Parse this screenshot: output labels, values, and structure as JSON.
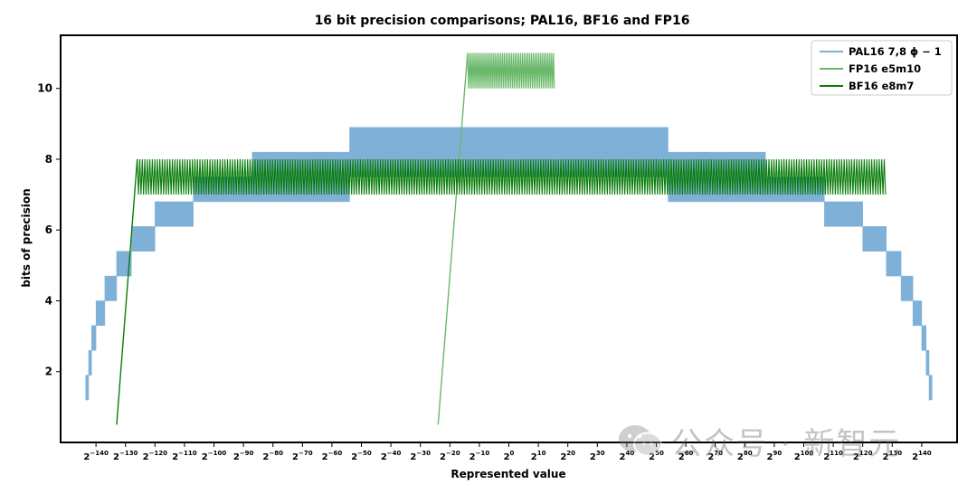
{
  "chart_data": {
    "type": "line",
    "title": "16 bit precision comparisons; PAL16, BF16 and FP16",
    "xlabel": "Represented value",
    "ylabel": "bits of precision",
    "x_scale": "log2",
    "xlim": [
      -152,
      152
    ],
    "ylim": [
      0,
      11.5
    ],
    "yticks": [
      2,
      4,
      6,
      8,
      10
    ],
    "xticks": [
      {
        "base": "2",
        "exp": "−140",
        "value": -140
      },
      {
        "base": "2",
        "exp": "−130",
        "value": -130
      },
      {
        "base": "2",
        "exp": "−120",
        "value": -120
      },
      {
        "base": "2",
        "exp": "−110",
        "value": -110
      },
      {
        "base": "2",
        "exp": "−100",
        "value": -100
      },
      {
        "base": "2",
        "exp": "−90",
        "value": -90
      },
      {
        "base": "2",
        "exp": "−80",
        "value": -80
      },
      {
        "base": "2",
        "exp": "−70",
        "value": -70
      },
      {
        "base": "2",
        "exp": "−60",
        "value": -60
      },
      {
        "base": "2",
        "exp": "−50",
        "value": -50
      },
      {
        "base": "2",
        "exp": "−40",
        "value": -40
      },
      {
        "base": "2",
        "exp": "−30",
        "value": -30
      },
      {
        "base": "2",
        "exp": "−20",
        "value": -20
      },
      {
        "base": "2",
        "exp": "−10",
        "value": -10
      },
      {
        "base": "2",
        "exp": "0",
        "value": 0
      },
      {
        "base": "2",
        "exp": "10",
        "value": 10
      },
      {
        "base": "2",
        "exp": "20",
        "value": 20
      },
      {
        "base": "2",
        "exp": "30",
        "value": 30
      },
      {
        "base": "2",
        "exp": "40",
        "value": 40
      },
      {
        "base": "2",
        "exp": "50",
        "value": 50
      },
      {
        "base": "2",
        "exp": "60",
        "value": 60
      },
      {
        "base": "2",
        "exp": "70",
        "value": 70
      },
      {
        "base": "2",
        "exp": "80",
        "value": 80
      },
      {
        "base": "2",
        "exp": "90",
        "value": 90
      },
      {
        "base": "2",
        "exp": "100",
        "value": 100
      },
      {
        "base": "2",
        "exp": "110",
        "value": 110
      },
      {
        "base": "2",
        "exp": "120",
        "value": 120
      },
      {
        "base": "2",
        "exp": "130",
        "value": 130
      },
      {
        "base": "2",
        "exp": "140",
        "value": 140
      }
    ],
    "legend_position": "top-right",
    "series": [
      {
        "name": "PAL16 7,8 ϕ − 1",
        "color": "#7fb1d8",
        "style": "band",
        "steps": [
          {
            "x0": -143.5,
            "x1": -142.5,
            "lo": 1.2,
            "hi": 1.9
          },
          {
            "x0": -142.5,
            "x1": -141.5,
            "lo": 1.9,
            "hi": 2.6
          },
          {
            "x0": -141.5,
            "x1": -140.0,
            "lo": 2.6,
            "hi": 3.3
          },
          {
            "x0": -140.0,
            "x1": -137.0,
            "lo": 3.3,
            "hi": 4.0
          },
          {
            "x0": -137.0,
            "x1": -133.0,
            "lo": 4.0,
            "hi": 4.7
          },
          {
            "x0": -133.0,
            "x1": -128.0,
            "lo": 4.7,
            "hi": 5.4
          },
          {
            "x0": -128.0,
            "x1": -120.0,
            "lo": 5.4,
            "hi": 6.1
          },
          {
            "x0": -120.0,
            "x1": -107.0,
            "lo": 6.1,
            "hi": 6.8
          },
          {
            "x0": -107.0,
            "x1": -87.0,
            "lo": 6.8,
            "hi": 7.5
          },
          {
            "x0": -87.0,
            "x1": -54.0,
            "lo": 6.8,
            "hi": 8.2
          },
          {
            "x0": -54.0,
            "x1": 54.0,
            "lo": 7.5,
            "hi": 8.9
          },
          {
            "x0": 54.0,
            "x1": 87.0,
            "lo": 6.8,
            "hi": 8.2
          },
          {
            "x0": 87.0,
            "x1": 107.0,
            "lo": 6.8,
            "hi": 7.5
          },
          {
            "x0": 107.0,
            "x1": 120.0,
            "lo": 6.1,
            "hi": 6.8
          },
          {
            "x0": 120.0,
            "x1": 128.0,
            "lo": 5.4,
            "hi": 6.1
          },
          {
            "x0": 128.0,
            "x1": 133.0,
            "lo": 4.7,
            "hi": 5.4
          },
          {
            "x0": 133.0,
            "x1": 137.0,
            "lo": 4.0,
            "hi": 4.7
          },
          {
            "x0": 137.0,
            "x1": 140.0,
            "lo": 3.3,
            "hi": 4.0
          },
          {
            "x0": 140.0,
            "x1": 141.5,
            "lo": 2.6,
            "hi": 3.3
          },
          {
            "x0": 141.5,
            "x1": 142.5,
            "lo": 1.9,
            "hi": 2.6
          },
          {
            "x0": 142.5,
            "x1": 143.5,
            "lo": 1.2,
            "hi": 1.9
          }
        ]
      },
      {
        "name": "FP16 e5m10",
        "color": "#6ab86a",
        "style": "sawtooth",
        "ramp": {
          "x0": -24.0,
          "y0": 0.5,
          "x1": -14.0,
          "y1": 11.0
        },
        "band": {
          "x0": -14.0,
          "x1": 15.5,
          "lo": 10.0,
          "hi": 11.0,
          "period": 0.62
        }
      },
      {
        "name": "BF16 e8m7",
        "color": "#0a7d0a",
        "style": "sawtooth",
        "ramp": {
          "x0": -133.0,
          "y0": 0.5,
          "x1": -126.0,
          "y1": 8.0
        },
        "band": {
          "x0": -126.0,
          "x1": 128.0,
          "lo": 7.0,
          "hi": 8.0,
          "period": 0.85
        }
      }
    ]
  },
  "watermark": {
    "text": "公众号 · 新智元",
    "icon": "wechat-icon"
  }
}
